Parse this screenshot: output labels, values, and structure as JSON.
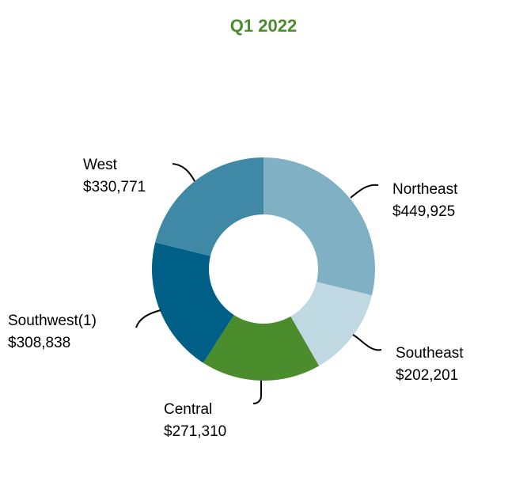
{
  "chart_data": {
    "type": "pie",
    "variant": "donut",
    "title": "Q1 2022",
    "title_color": "#4a8c2c",
    "start_angle": "top, clockwise",
    "legend": "none (leader-line labels)",
    "slices": [
      {
        "label": "Northeast",
        "value": 449925,
        "value_label": "$449,925",
        "color": "#7fb0c4"
      },
      {
        "label": "Southeast",
        "value": 202201,
        "value_label": "$202,201",
        "color": "#bfd8e2"
      },
      {
        "label": "Central",
        "value": 271310,
        "value_label": "$271,310",
        "color": "#4b8c2d"
      },
      {
        "label": "Southwest(1)",
        "value": 308838,
        "value_label": "$308,838",
        "color": "#005f87"
      },
      {
        "label": "West",
        "value": 330771,
        "value_label": "$330,771",
        "color": "#3f88a6"
      }
    ]
  }
}
